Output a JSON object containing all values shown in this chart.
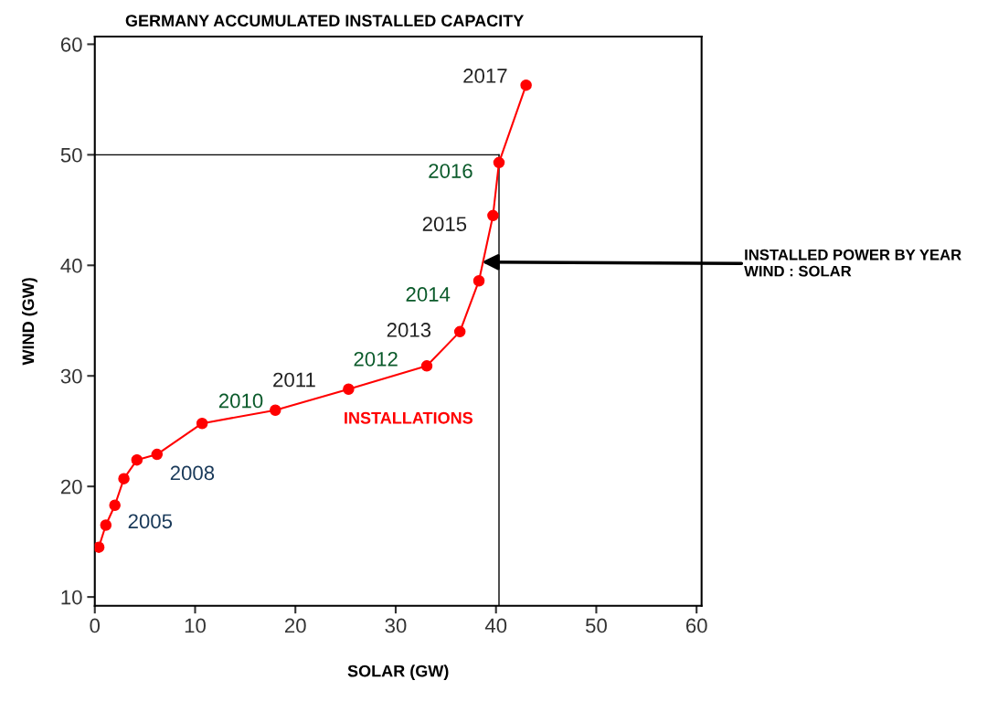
{
  "chart_data": {
    "type": "line",
    "title": "GERMANY ACCUMULATED INSTALLED CAPACITY",
    "xlabel": "SOLAR (GW)",
    "ylabel": "WIND (GW)",
    "x": [
      0.4,
      1.1,
      2.0,
      2.9,
      4.2,
      6.2,
      10.7,
      18.0,
      25.3,
      33.1,
      36.4,
      38.3,
      39.7,
      40.3,
      43.0
    ],
    "series": [
      {
        "name": "INSTALLATIONS",
        "color": "#ff0000",
        "values": [
          14.5,
          16.5,
          18.3,
          20.7,
          22.4,
          22.9,
          25.7,
          26.9,
          28.8,
          30.9,
          34.0,
          38.6,
          44.5,
          49.3,
          56.3
        ]
      }
    ],
    "xlim": [
      0,
      60.5
    ],
    "ylim": [
      9.2,
      60.7
    ],
    "xticks": [
      0,
      10,
      20,
      30,
      40,
      50,
      60
    ],
    "yticks": [
      10,
      20,
      30,
      40,
      50,
      60
    ],
    "marker": "circle",
    "grid": false,
    "ref_lines": [
      {
        "axis": "y",
        "value": 50,
        "color": "#000000"
      },
      {
        "axis": "x",
        "value": 40.3,
        "color": "#000000"
      }
    ],
    "annotations": [
      {
        "text": "2005",
        "x": 2.0,
        "y": 18.3
      },
      {
        "text": "2008",
        "x": 6.2,
        "y": 22.9
      },
      {
        "text": "2010",
        "x": 18.0,
        "y": 26.9
      },
      {
        "text": "2011",
        "x": 25.3,
        "y": 28.8
      },
      {
        "text": "2012",
        "x": 33.1,
        "y": 30.9
      },
      {
        "text": "2013",
        "x": 36.4,
        "y": 34.0
      },
      {
        "text": "2014",
        "x": 38.3,
        "y": 38.6
      },
      {
        "text": "2015",
        "x": 39.7,
        "y": 44.5
      },
      {
        "text": "2016",
        "x": 40.3,
        "y": 49.3
      },
      {
        "text": "2017",
        "x": 43.0,
        "y": 56.3
      },
      {
        "text": "INSTALLED POWER BY YEAR\nWIND : SOLAR",
        "x": 38.6,
        "y": 40.3
      }
    ]
  }
}
